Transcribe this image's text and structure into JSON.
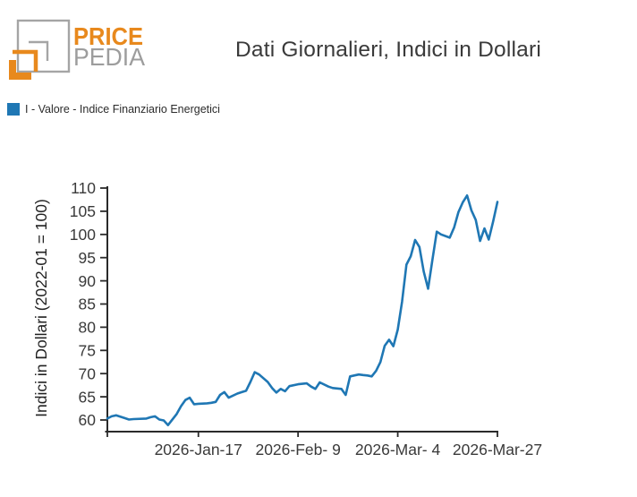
{
  "brand": {
    "name_top": "PRICE",
    "name_bottom": "PEDIA",
    "orange": "#e8891d",
    "gray": "#9d9d9d"
  },
  "header": {
    "title": "Dati Giornalieri, Indici in Dollari"
  },
  "legend": {
    "swatch_color": "#1f77b4",
    "series_label": "I - Valore - Indice Finanziario Energetici"
  },
  "chart_data": {
    "type": "line",
    "title": "Dati Giornalieri, Indici in Dollari",
    "xlabel": "",
    "ylabel": "Indici in Dollari (2022-01 = 100)",
    "ylim": [
      57.5,
      110.5
    ],
    "yticks": [
      60,
      65,
      70,
      75,
      80,
      85,
      90,
      95,
      100,
      105,
      110
    ],
    "grid": false,
    "legend_position": "top-left",
    "line_color": "#1f77b4",
    "x_start": "2025-12-27",
    "x_end": "2026-03-27",
    "xticks": [
      {
        "date": "2025-12-27",
        "label": ""
      },
      {
        "date": "2026-01-17",
        "label": "2026-Jan-17"
      },
      {
        "date": "2026-02-09",
        "label": "2026-Feb- 9"
      },
      {
        "date": "2026-03-04",
        "label": "2026-Mar- 4"
      },
      {
        "date": "2026-03-27",
        "label": "2026-Mar-27"
      }
    ],
    "series": [
      {
        "name": "I - Valore - Indice Finanziario Energetici",
        "points": [
          [
            "2025-12-27",
            60.3
          ],
          [
            "2025-12-28",
            60.8
          ],
          [
            "2025-12-29",
            61.0
          ],
          [
            "2025-12-31",
            60.4
          ],
          [
            "2026-01-01",
            60.1
          ],
          [
            "2026-01-02",
            60.2
          ],
          [
            "2026-01-05",
            60.3
          ],
          [
            "2026-01-06",
            60.6
          ],
          [
            "2026-01-07",
            60.8
          ],
          [
            "2026-01-08",
            60.1
          ],
          [
            "2026-01-09",
            59.9
          ],
          [
            "2026-01-10",
            58.9
          ],
          [
            "2026-01-12",
            61.3
          ],
          [
            "2026-01-13",
            63.0
          ],
          [
            "2026-01-14",
            64.3
          ],
          [
            "2026-01-15",
            64.8
          ],
          [
            "2026-01-16",
            63.4
          ],
          [
            "2026-01-17",
            63.5
          ],
          [
            "2026-01-19",
            63.6
          ],
          [
            "2026-01-20",
            63.7
          ],
          [
            "2026-01-21",
            63.9
          ],
          [
            "2026-01-22",
            65.4
          ],
          [
            "2026-01-23",
            66.0
          ],
          [
            "2026-01-24",
            64.8
          ],
          [
            "2026-01-26",
            65.7
          ],
          [
            "2026-01-27",
            66.0
          ],
          [
            "2026-01-28",
            66.3
          ],
          [
            "2026-01-29",
            68.2
          ],
          [
            "2026-01-30",
            70.3
          ],
          [
            "2026-01-31",
            69.8
          ],
          [
            "2026-02-02",
            68.2
          ],
          [
            "2026-02-03",
            66.9
          ],
          [
            "2026-02-04",
            65.9
          ],
          [
            "2026-02-05",
            66.7
          ],
          [
            "2026-02-06",
            66.2
          ],
          [
            "2026-02-07",
            67.3
          ],
          [
            "2026-02-09",
            67.7
          ],
          [
            "2026-02-10",
            67.8
          ],
          [
            "2026-02-11",
            67.9
          ],
          [
            "2026-02-12",
            67.2
          ],
          [
            "2026-02-13",
            66.7
          ],
          [
            "2026-02-14",
            68.1
          ],
          [
            "2026-02-16",
            67.2
          ],
          [
            "2026-02-17",
            66.9
          ],
          [
            "2026-02-18",
            66.8
          ],
          [
            "2026-02-19",
            66.7
          ],
          [
            "2026-02-20",
            65.4
          ],
          [
            "2026-02-21",
            69.4
          ],
          [
            "2026-02-23",
            69.8
          ],
          [
            "2026-02-24",
            69.7
          ],
          [
            "2026-02-25",
            69.6
          ],
          [
            "2026-02-26",
            69.4
          ],
          [
            "2026-02-27",
            70.6
          ],
          [
            "2026-02-28",
            72.5
          ],
          [
            "2026-03-01",
            76.0
          ],
          [
            "2026-03-02",
            77.3
          ],
          [
            "2026-03-03",
            75.9
          ],
          [
            "2026-03-04",
            79.5
          ],
          [
            "2026-03-05",
            85.5
          ],
          [
            "2026-03-06",
            93.5
          ],
          [
            "2026-03-07",
            95.3
          ],
          [
            "2026-03-08",
            98.8
          ],
          [
            "2026-03-09",
            97.3
          ],
          [
            "2026-03-10",
            92.0
          ],
          [
            "2026-03-11",
            88.3
          ],
          [
            "2026-03-12",
            94.5
          ],
          [
            "2026-03-13",
            100.6
          ],
          [
            "2026-03-14",
            100.0
          ],
          [
            "2026-03-16",
            99.3
          ],
          [
            "2026-03-17",
            101.5
          ],
          [
            "2026-03-18",
            104.8
          ],
          [
            "2026-03-19",
            106.9
          ],
          [
            "2026-03-20",
            108.4
          ],
          [
            "2026-03-21",
            105.2
          ],
          [
            "2026-03-22",
            103.1
          ],
          [
            "2026-03-23",
            98.6
          ],
          [
            "2026-03-24",
            101.3
          ],
          [
            "2026-03-25",
            98.9
          ],
          [
            "2026-03-26",
            102.8
          ],
          [
            "2026-03-27",
            107.0
          ]
        ]
      }
    ]
  }
}
